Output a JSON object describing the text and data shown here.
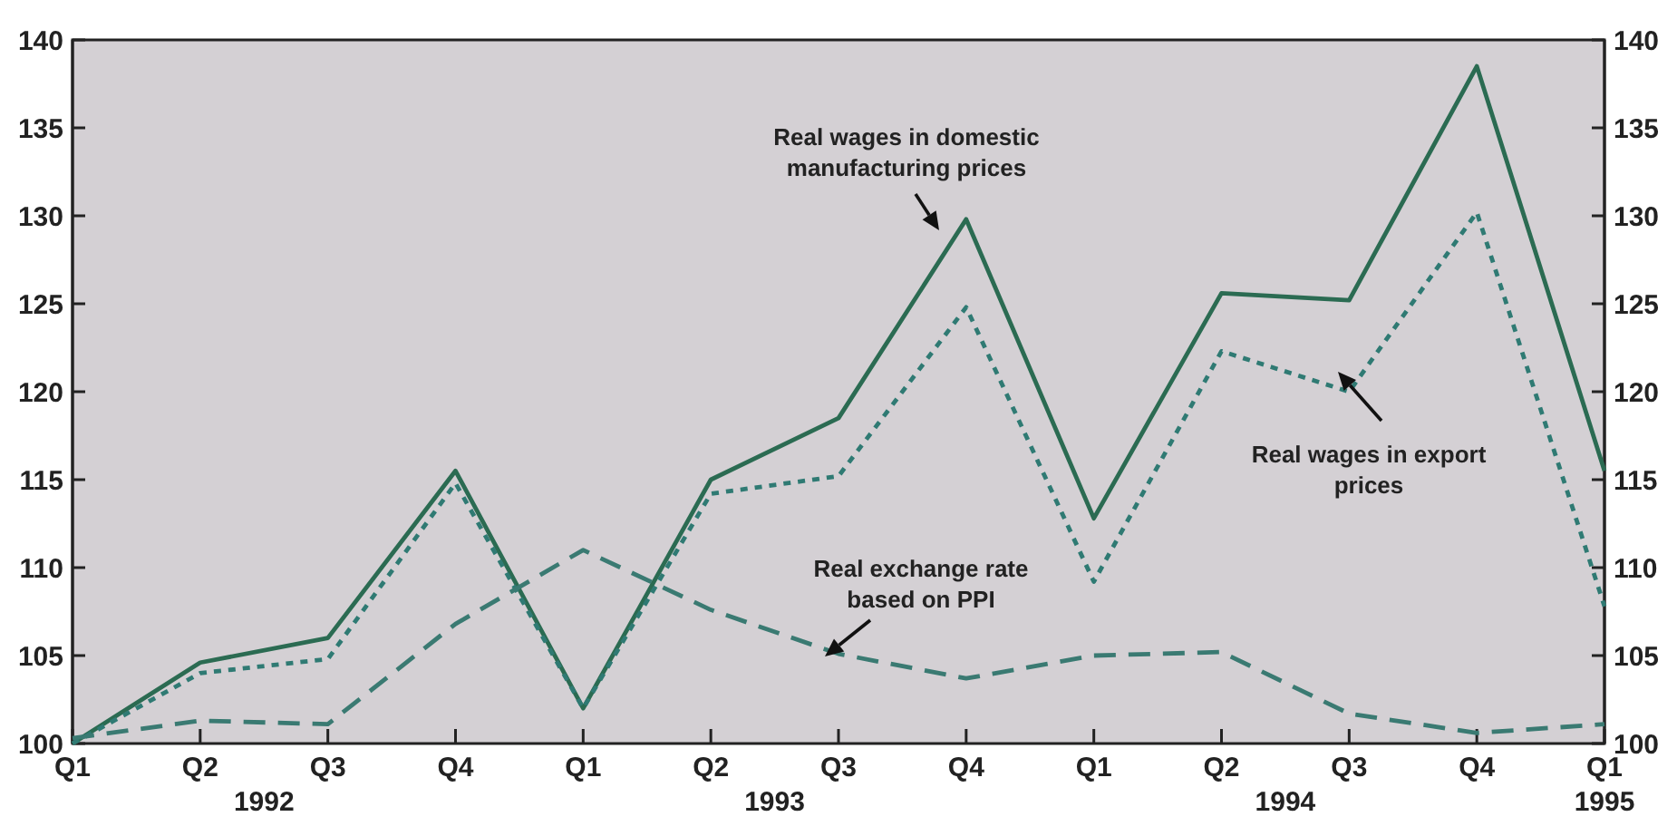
{
  "chart_data": {
    "type": "line",
    "categories": [
      "Q1",
      "Q2",
      "Q3",
      "Q4",
      "Q1",
      "Q2",
      "Q3",
      "Q4",
      "Q1",
      "Q2",
      "Q3",
      "Q4",
      "Q1"
    ],
    "series": [
      {
        "color": "#2b6b52",
        "line_style": "solid",
        "values": [
          100,
          104.6,
          106,
          115.5,
          102,
          115,
          118.5,
          129.8,
          112.8,
          125.6,
          125.2,
          138.5,
          115.5
        ]
      },
      {
        "color": "#2f7a73",
        "line_style": "dotted",
        "values": [
          100,
          104,
          104.8,
          114.8,
          102,
          114.2,
          115.2,
          124.8,
          109.2,
          122.3,
          120,
          130.2,
          107.8
        ]
      },
      {
        "color": "#3a7a72",
        "line_style": "dashed",
        "values": [
          100.3,
          101.3,
          101.1,
          106.8,
          111,
          107.6,
          105.1,
          103.7,
          105,
          105.2,
          101.7,
          100.6,
          101.1
        ]
      }
    ],
    "ylim": [
      100,
      140
    ],
    "yticks": [
      100,
      105,
      110,
      115,
      120,
      125,
      130,
      135,
      140
    ],
    "y2lim": [
      100,
      140
    ],
    "y2ticks": [
      100,
      105,
      110,
      115,
      120,
      125,
      130,
      135,
      140
    ],
    "grid": false,
    "marker": "none",
    "annotations": [
      "Real wages in domestic manufacturing prices",
      "Real wages in export prices",
      "Real exchange rate based on PPI",
      "1992",
      "1993",
      "1994",
      "1995"
    ]
  }
}
